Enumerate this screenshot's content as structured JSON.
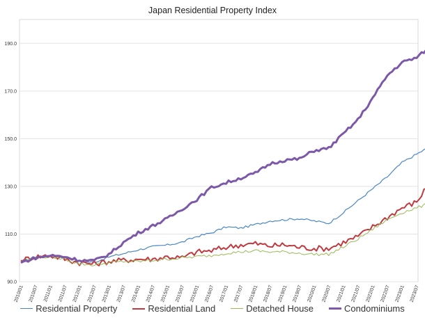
{
  "chart_data": {
    "type": "line",
    "title": "Japan Residential Property Index",
    "xlabel": "",
    "ylabel": "",
    "ylim": [
      90,
      200
    ],
    "yticks": [
      "90.0",
      "110.0",
      "130.0",
      "150.0",
      "170.0",
      "190.0"
    ],
    "x_tick_labels": [
      "2010/01",
      "2010/07",
      "2011/01",
      "2011/07",
      "2012/01",
      "2012/07",
      "2013/01",
      "2013/07",
      "2014/01",
      "2014/07",
      "2015/01",
      "2015/07",
      "2016/01",
      "2016/07",
      "2017/01",
      "2017/07",
      "2018/01",
      "2018/07",
      "2019/01",
      "2019/07",
      "2020/01",
      "2020/07",
      "2021/01",
      "2021/07",
      "2022/01",
      "2022/07",
      "2023/01",
      "2023/07"
    ],
    "grid": "horizontal",
    "legend_position": "bottom",
    "series": [
      {
        "name": "Residential Property",
        "color": "#4a86c5",
        "width": 1.2,
        "values": [
          98.5,
          100.5,
          100.8,
          100.3,
          98.6,
          98.2,
          100.4,
          101.8,
          103.4,
          104.7,
          105.4,
          106.6,
          109.0,
          110.5,
          113.0,
          112.5,
          114.0,
          115.5,
          116.0,
          116.5,
          115.5,
          114.5,
          119.0,
          124.0,
          129.0,
          134.0,
          140.0,
          143.5,
          147.0
        ]
      },
      {
        "name": "Residential Land",
        "color": "#c0393f",
        "width": 2.0,
        "values": [
          99.0,
          100.5,
          101.0,
          99.5,
          98.0,
          97.5,
          98.5,
          99.0,
          99.5,
          99.5,
          100.5,
          100.0,
          102.5,
          103.0,
          104.5,
          105.5,
          106.0,
          105.0,
          105.5,
          104.5,
          104.0,
          104.0,
          106.5,
          109.0,
          113.0,
          117.0,
          121.0,
          123.5,
          132.5
        ]
      },
      {
        "name": "Detached House",
        "color": "#98b954",
        "width": 1.0,
        "values": [
          98.5,
          100.0,
          100.5,
          99.5,
          97.5,
          97.0,
          98.0,
          98.5,
          98.5,
          99.0,
          99.5,
          100.0,
          100.5,
          101.0,
          102.0,
          102.5,
          103.0,
          102.5,
          102.5,
          102.0,
          101.5,
          101.5,
          104.5,
          108.0,
          112.0,
          116.0,
          119.0,
          121.0,
          123.0
        ]
      },
      {
        "name": "Condominiums",
        "color": "#7c58a8",
        "width": 3.0,
        "values": [
          98.0,
          100.0,
          101.0,
          100.5,
          99.0,
          98.8,
          101.5,
          106.5,
          110.5,
          113.5,
          116.5,
          120.5,
          124.5,
          129.5,
          131.5,
          133.5,
          135.5,
          139.5,
          141.0,
          141.5,
          145.0,
          146.0,
          152.0,
          158.0,
          167.0,
          176.5,
          182.0,
          184.0,
          189.0
        ]
      }
    ]
  }
}
